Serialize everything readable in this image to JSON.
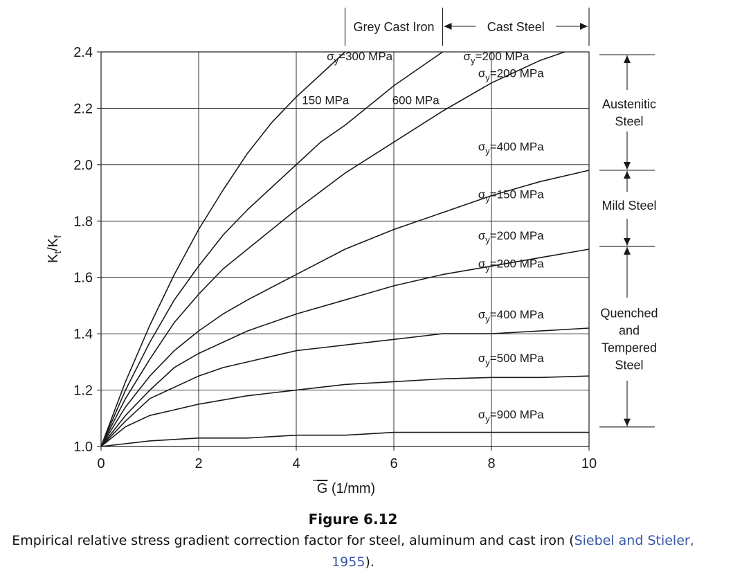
{
  "chart_data": {
    "type": "line",
    "title": "Figure 6.12",
    "xlabel": "G (1/mm)",
    "xlabel_overline_char": "G",
    "xlabel_rest": "(1/mm)",
    "ylabel_parts": [
      "K",
      "t",
      "/K",
      "f"
    ],
    "xlim": [
      0,
      10
    ],
    "ylim": [
      1.0,
      2.4
    ],
    "xticks": [
      0,
      2,
      4,
      6,
      8,
      10
    ],
    "yticks": [
      1.0,
      1.2,
      1.4,
      1.6,
      1.8,
      2.0,
      2.2,
      2.4
    ],
    "xtick_labels": [
      "0",
      "2",
      "4",
      "6",
      "8",
      "10"
    ],
    "ytick_labels": [
      "1.0",
      "1.2",
      "1.4",
      "1.6",
      "1.8",
      "2.0",
      "2.2",
      "2.4"
    ],
    "grid": true,
    "series": [
      {
        "name": "σy=300 MPa (grey cast iron)",
        "x": [
          0,
          0.5,
          1,
          1.5,
          2,
          2.5,
          3,
          3.5,
          4,
          4.5,
          5
        ],
        "y": [
          1.0,
          1.23,
          1.43,
          1.61,
          1.77,
          1.91,
          2.04,
          2.15,
          2.24,
          2.32,
          2.4
        ]
      },
      {
        "name": "σy=200 MPa (cast steel)",
        "x": [
          0,
          0.5,
          1,
          1.5,
          2,
          2.5,
          3,
          3.5,
          4,
          4.5,
          5,
          5.5,
          6,
          6.5,
          7
        ],
        "y": [
          1.0,
          1.2,
          1.37,
          1.52,
          1.64,
          1.75,
          1.84,
          1.92,
          2.0,
          2.08,
          2.14,
          2.21,
          2.28,
          2.34,
          2.4
        ]
      },
      {
        "name": "σy=200 MPa (austenitic)",
        "x": [
          0,
          0.5,
          1,
          1.5,
          2,
          2.5,
          3,
          4,
          5,
          6,
          7,
          8,
          9,
          9.5
        ],
        "y": [
          1.0,
          1.17,
          1.31,
          1.44,
          1.54,
          1.63,
          1.7,
          1.84,
          1.97,
          2.08,
          2.19,
          2.29,
          2.37,
          2.4
        ]
      },
      {
        "name": "σy=400 MPa (austenitic)",
        "x": [
          0,
          0.5,
          1,
          1.5,
          2,
          2.5,
          3,
          4,
          5,
          6,
          7,
          8,
          9,
          10
        ],
        "y": [
          1.0,
          1.14,
          1.25,
          1.34,
          1.41,
          1.47,
          1.52,
          1.61,
          1.7,
          1.77,
          1.83,
          1.89,
          1.94,
          1.98
        ]
      },
      {
        "name": "σy=150 MPa (mild steel)",
        "x": [
          0,
          0.5,
          1,
          1.5,
          2,
          2.5,
          3,
          4,
          5,
          6,
          7,
          8,
          9,
          10
        ],
        "y": [
          1.0,
          1.11,
          1.2,
          1.28,
          1.33,
          1.37,
          1.41,
          1.47,
          1.52,
          1.57,
          1.61,
          1.64,
          1.67,
          1.7
        ]
      },
      {
        "name": "σy=200 MPa (mild steel)",
        "x": [
          0,
          0.5,
          1,
          1.5,
          2,
          2.5,
          3,
          3.5,
          4,
          4.5,
          5,
          6,
          7,
          8,
          9,
          10
        ],
        "y": [
          1.0,
          1.09,
          1.17,
          1.21,
          1.25,
          1.28,
          1.3,
          1.32,
          1.34,
          1.35,
          1.36,
          1.38,
          1.4,
          1.4,
          1.41,
          1.42
        ]
      },
      {
        "name": "σy=400 MPa (quenched and tempered)",
        "x": [
          0,
          0.5,
          1,
          1.5,
          2,
          3,
          4,
          5,
          6,
          7,
          8,
          9,
          10
        ],
        "y": [
          1.0,
          1.07,
          1.11,
          1.13,
          1.15,
          1.18,
          1.2,
          1.22,
          1.23,
          1.24,
          1.245,
          1.245,
          1.25
        ]
      },
      {
        "name": "σy=900 MPa (quenched and tempered)",
        "x": [
          0,
          1,
          2,
          3,
          4,
          5,
          6,
          7,
          8,
          9,
          10
        ],
        "y": [
          1.0,
          1.02,
          1.03,
          1.03,
          1.04,
          1.04,
          1.05,
          1.05,
          1.05,
          1.05,
          1.05
        ]
      }
    ],
    "annotations": [
      {
        "text": "σy=300 MPa",
        "x": 5.3,
        "y": 2.37
      },
      {
        "text": "σy=200 MPa",
        "x": 8.1,
        "y": 2.37
      },
      {
        "text": "σy=200 MPa",
        "x": 8.4,
        "y": 2.31
      },
      {
        "text": "150 MPa",
        "x": 4.6,
        "y": 2.215
      },
      {
        "text": "600 MPa",
        "x": 6.45,
        "y": 2.215
      },
      {
        "text": "σy=400 MPa",
        "x": 8.4,
        "y": 2.05
      },
      {
        "text": "σy=150 MPa",
        "x": 8.4,
        "y": 1.88
      },
      {
        "text": "σy=200 MPa",
        "x": 8.4,
        "y": 1.735
      },
      {
        "text": "σy=200 MPa",
        "x": 8.4,
        "y": 1.635
      },
      {
        "text": "σy=400 MPa",
        "x": 8.4,
        "y": 1.455
      },
      {
        "text": "σy=500 MPa",
        "x": 8.4,
        "y": 1.3
      },
      {
        "text": "σy=900 MPa",
        "x": 8.4,
        "y": 1.1
      }
    ],
    "top_groups": [
      {
        "label": "Grey Cast Iron",
        "x_from": 5,
        "x_to": 7
      },
      {
        "label": "Cast Steel",
        "x_from": 7,
        "x_to": 10
      }
    ],
    "right_groups": [
      {
        "label_lines": [
          "Austenitic",
          "Steel"
        ],
        "y_from": 2.4,
        "y_to": 1.98
      },
      {
        "label_lines": [
          "Mild Steel"
        ],
        "y_from": 1.98,
        "y_to": 1.71
      },
      {
        "label_lines": [
          "Quenched",
          "and",
          "Tempered",
          "Steel"
        ],
        "y_from": 1.71,
        "y_to": 1.03
      }
    ]
  },
  "caption": {
    "figure_label": "Figure 6.12",
    "text": "Empirical relative stress gradient correction factor for steel, aluminum and cast iron (",
    "citation": "Siebel and Stieler, 1955",
    "text_end": ")."
  }
}
